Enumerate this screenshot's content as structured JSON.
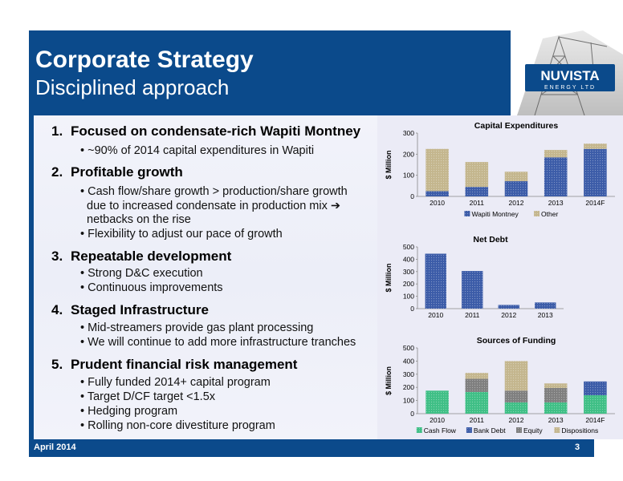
{
  "header": {
    "title": "Corporate Strategy",
    "subtitle": "Disciplined approach"
  },
  "logo": {
    "line1": "NUVISTA",
    "line2": "ENERGY LTD"
  },
  "strategy": [
    {
      "num": "1.",
      "heading": "Focused on condensate-rich Wapiti Montney",
      "bullets": [
        "• ~90% of 2014 capital expenditures in Wapiti"
      ]
    },
    {
      "num": "2.",
      "heading": "Profitable growth",
      "bullets": [
        "• Cash flow/share growth > production/share growth",
        "due to increased condensate in production mix ➔",
        "netbacks on the rise",
        "• Flexibility to adjust our pace of growth"
      ]
    },
    {
      "num": "3.",
      "heading": "Repeatable development",
      "bullets": [
        "• Strong D&C execution",
        "• Continuous improvements"
      ]
    },
    {
      "num": "4.",
      "heading": "Staged Infrastructure",
      "bullets": [
        "• Mid-streamers provide gas plant processing",
        "• We will continue to add more infrastructure tranches"
      ]
    },
    {
      "num": "5.",
      "heading": "Prudent financial risk management",
      "bullets": [
        "• Fully funded 2014+ capital program",
        "• Target D/CF target <1.5x",
        "• Hedging program",
        "• Rolling non-core divestiture program"
      ]
    }
  ],
  "footer": {
    "date": "April 2014",
    "page": "3"
  },
  "colors": {
    "blue": "#3c5ca8",
    "tan": "#c4b68e",
    "green": "#3fbf86",
    "gray": "#7f7f7f",
    "header": "#0b4a8b"
  },
  "chart_data": [
    {
      "type": "bar",
      "stacked": true,
      "title": "Capital Expenditures",
      "ylabel": "$ Million",
      "categories": [
        "2010",
        "2011",
        "2012",
        "2013",
        "2014F"
      ],
      "ylim": [
        0,
        300
      ],
      "yticks": [
        0,
        100,
        200,
        300
      ],
      "series": [
        {
          "name": "Wapiti Montney",
          "color": "#3c5ca8",
          "values": [
            25,
            45,
            72,
            185,
            225
          ]
        },
        {
          "name": "Other",
          "color": "#c4b68e",
          "values": [
            200,
            118,
            45,
            35,
            25
          ]
        }
      ],
      "legend": "bottom"
    },
    {
      "type": "bar",
      "title": "Net Debt",
      "ylabel": "$ Million",
      "categories": [
        "2010",
        "2011",
        "2012",
        "2013"
      ],
      "ylim": [
        0,
        500
      ],
      "yticks": [
        0,
        100,
        200,
        300,
        400,
        500
      ],
      "series": [
        {
          "color": "#3c5ca8",
          "values": [
            445,
            305,
            30,
            50
          ]
        }
      ]
    },
    {
      "type": "bar",
      "stacked": true,
      "title": "Sources of Funding",
      "ylabel": "$ Million",
      "categories": [
        "2010",
        "2011",
        "2012",
        "2013",
        "2014F"
      ],
      "ylim": [
        0,
        500
      ],
      "yticks": [
        0,
        100,
        200,
        300,
        400,
        500
      ],
      "series": [
        {
          "name": "Cash Flow",
          "color": "#3fbf86",
          "values": [
            175,
            165,
            85,
            85,
            140
          ]
        },
        {
          "name": "Bank Debt",
          "color": "#3c5ca8",
          "values": [
            0,
            0,
            0,
            0,
            105
          ]
        },
        {
          "name": "Equity",
          "color": "#7f7f7f",
          "values": [
            0,
            100,
            90,
            110,
            0
          ]
        },
        {
          "name": "Dispositions",
          "color": "#c4b68e",
          "values": [
            0,
            45,
            225,
            35,
            0
          ]
        }
      ],
      "legend": "bottom"
    }
  ]
}
